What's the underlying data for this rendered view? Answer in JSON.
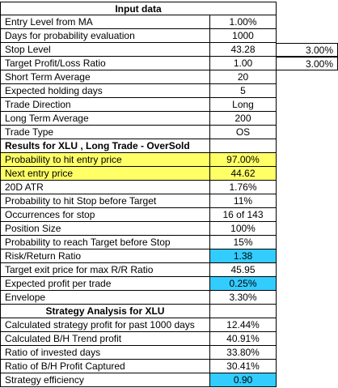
{
  "header_input": "Input data",
  "inputs": [
    {
      "label": "Entry Level from MA",
      "value": "1.00%"
    },
    {
      "label": "Days for probability evaluation",
      "value": "1000"
    },
    {
      "label": "Stop Level",
      "value": "43.28",
      "extra": "3.00%"
    },
    {
      "label": "Target Profit/Loss Ratio",
      "value": "1.00",
      "extra": "3.00%"
    },
    {
      "label": "Short Term Average",
      "value": "20"
    },
    {
      "label": "Expected holding days",
      "value": "5"
    },
    {
      "label": "Trade Direction",
      "value": "Long"
    },
    {
      "label": "Long Term Average",
      "value": "200"
    },
    {
      "label": "Trade Type",
      "value": "OS"
    }
  ],
  "results_header": "Results for XLU , Long Trade - OverSold",
  "results": [
    {
      "label": "Probability to hit entry price",
      "value": "97.00%",
      "highlight": "yellow"
    },
    {
      "label": "Next entry price",
      "value": "44.62",
      "highlight": "yellow"
    },
    {
      "label": "20D ATR",
      "value": "1.76%"
    },
    {
      "label": "Probability to hit Stop before Target",
      "value": "11%"
    },
    {
      "label": "Occurrences for stop",
      "value": "16 of 143"
    },
    {
      "label": "Position Size",
      "value": "100%"
    },
    {
      "label": "Probability to reach Target before Stop",
      "value": "15%"
    },
    {
      "label": "Risk/Return Ratio",
      "value": "1.38",
      "highlight": "blue"
    },
    {
      "label": "Target exit price for max R/R Ratio",
      "value": "45.95"
    },
    {
      "label": "Expected profit per trade",
      "value": "0.25%",
      "highlight": "blue"
    },
    {
      "label": "Envelope",
      "value": "3.30%"
    }
  ],
  "strategy_header": "Strategy Analysis for XLU",
  "strategy": [
    {
      "label": "Calculated strategy profit for past 1000 days",
      "value": "12.44%"
    },
    {
      "label": "Calculated B/H Trend profit",
      "value": "40.91%"
    },
    {
      "label": "Ratio of invested days",
      "value": "33.80%"
    },
    {
      "label": "Ratio of B/H Profit Captured",
      "value": "30.41%"
    },
    {
      "label": "Strategy efficiency",
      "value": "0.90",
      "highlight": "blue"
    }
  ],
  "colors": {
    "yellow": "#ffff66",
    "blue": "#33ccff"
  }
}
